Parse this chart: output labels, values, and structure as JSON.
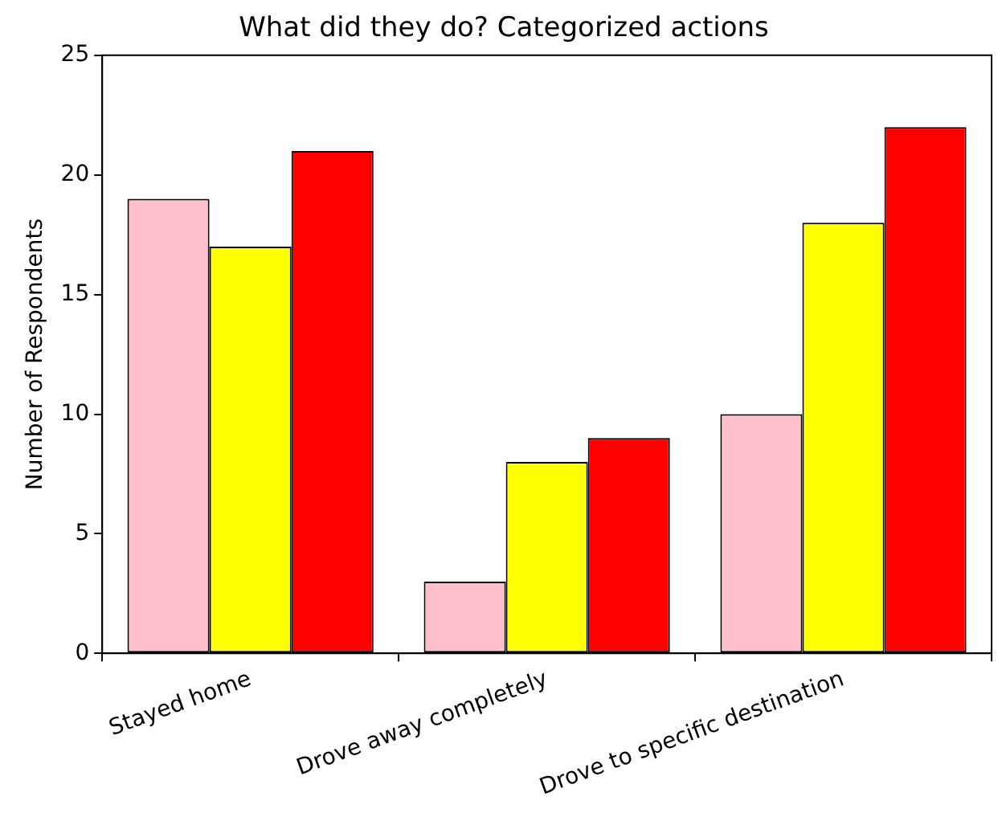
{
  "chart_data": {
    "type": "bar",
    "title": "What did they do? Categorized actions",
    "ylabel": "Number of Respondents",
    "categories": [
      "Stayed home",
      "Drove away completely",
      "Drove to specific destination"
    ],
    "series": [
      {
        "color": "#ffc0cb",
        "values": [
          19,
          3,
          10
        ]
      },
      {
        "color": "#ffff00",
        "values": [
          17,
          8,
          18
        ]
      },
      {
        "color": "#ff0000",
        "values": [
          21,
          9,
          22
        ]
      }
    ],
    "ylim": [
      0,
      25
    ],
    "yticks": [
      0,
      5,
      10,
      15,
      20,
      25
    ],
    "grid": false,
    "legend": false
  }
}
